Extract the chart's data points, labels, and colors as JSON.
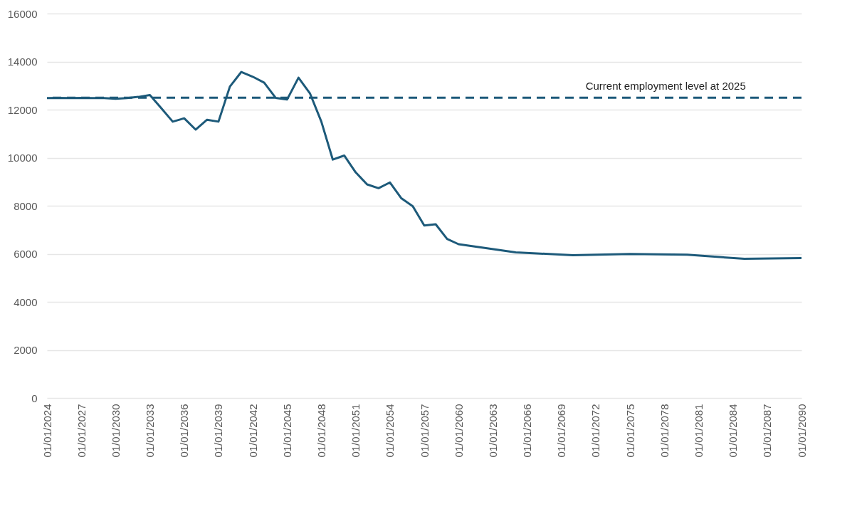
{
  "chart_data": {
    "type": "line",
    "x": [
      "2024",
      "2025",
      "2026",
      "2027",
      "2028",
      "2029",
      "2030",
      "2031",
      "2032",
      "2033",
      "2034",
      "2035",
      "2036",
      "2037",
      "2038",
      "2039",
      "2040",
      "2041",
      "2042",
      "2043",
      "2044",
      "2045",
      "2046",
      "2047",
      "2048",
      "2049",
      "2050",
      "2051",
      "2052",
      "2053",
      "2054",
      "2055",
      "2056",
      "2057",
      "2058",
      "2059",
      "2060",
      "2065",
      "2070",
      "2075",
      "2080",
      "2085",
      "2090"
    ],
    "series": [
      {
        "color": "#1d5a7a",
        "values": [
          12480,
          12490,
          12480,
          12490,
          12480,
          12480,
          12450,
          12480,
          12530,
          12610,
          12060,
          11500,
          11640,
          11170,
          11580,
          11500,
          12960,
          13570,
          13370,
          13120,
          12490,
          12420,
          13330,
          12680,
          11500,
          9920,
          10090,
          9390,
          8890,
          8730,
          8970,
          8310,
          7980,
          7180,
          7230,
          6620,
          6400,
          6060,
          5940,
          5990,
          5960,
          5790,
          5820
        ]
      }
    ],
    "xlim": [
      "2024",
      "2090"
    ],
    "xticks": [
      {
        "value": "2024",
        "label": "01/01/2024"
      },
      {
        "value": "2027",
        "label": "01/01/2027"
      },
      {
        "value": "2030",
        "label": "01/01/2030"
      },
      {
        "value": "2033",
        "label": "01/01/2033"
      },
      {
        "value": "2036",
        "label": "01/01/2036"
      },
      {
        "value": "2039",
        "label": "01/01/2039"
      },
      {
        "value": "2042",
        "label": "01/01/2042"
      },
      {
        "value": "2045",
        "label": "01/01/2045"
      },
      {
        "value": "2048",
        "label": "01/01/2048"
      },
      {
        "value": "2051",
        "label": "01/01/2051"
      },
      {
        "value": "2054",
        "label": "01/01/2054"
      },
      {
        "value": "2057",
        "label": "01/01/2057"
      },
      {
        "value": "2060",
        "label": "01/01/2060"
      },
      {
        "value": "2063",
        "label": "01/01/2063"
      },
      {
        "value": "2066",
        "label": "01/01/2066"
      },
      {
        "value": "2069",
        "label": "01/01/2069"
      },
      {
        "value": "2072",
        "label": "01/01/2072"
      },
      {
        "value": "2075",
        "label": "01/01/2075"
      },
      {
        "value": "2078",
        "label": "01/01/2078"
      },
      {
        "value": "2081",
        "label": "01/01/2081"
      },
      {
        "value": "2084",
        "label": "01/01/2084"
      },
      {
        "value": "2087",
        "label": "01/01/2087"
      },
      {
        "value": "2090",
        "label": "01/01/2090"
      }
    ],
    "ylim": [
      0,
      16000
    ],
    "yticks": [
      0,
      2000,
      4000,
      6000,
      8000,
      10000,
      12000,
      14000,
      16000
    ],
    "grid": "y",
    "line_style": "solid",
    "ref_lines": [
      {
        "axis": "y",
        "value": 12500,
        "label": "Current employment level at 2025",
        "color": "#1d5a7a",
        "line_style": "dashed"
      }
    ]
  }
}
